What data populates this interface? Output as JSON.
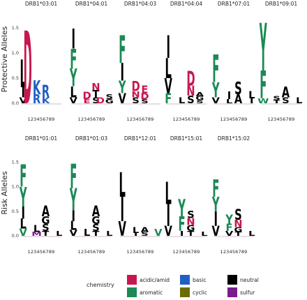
{
  "chart_data": {
    "type": "sequence-logo",
    "positions": [
      "1",
      "2",
      "3",
      "4",
      "5",
      "6",
      "7",
      "8",
      "9"
    ],
    "position_axis_label": "123456789",
    "yticks": [
      "0.0",
      "0.5",
      "1.0",
      "1.5"
    ],
    "ylim": [
      0,
      1.75
    ],
    "rows": [
      {
        "label": "Protective Alleles",
        "panels": [
          {
            "title": "DRB1*03:01",
            "letters": [
              {
                "pos": 1,
                "char": "L",
                "value": 0.55,
                "chem": "neutral"
              },
              {
                "pos": 1,
                "char": "I",
                "value": 0.2,
                "chem": "neutral"
              },
              {
                "pos": 1,
                "char": "V",
                "value": 0.12,
                "chem": "neutral"
              },
              {
                "pos": 2,
                "char": "D",
                "value": 1.45,
                "chem": "acidic/amid"
              },
              {
                "pos": 4,
                "char": "K",
                "value": 0.28,
                "chem": "basic"
              },
              {
                "pos": 4,
                "char": "R",
                "value": 0.18,
                "chem": "basic"
              },
              {
                "pos": 6,
                "char": "R",
                "value": 0.25,
                "chem": "basic"
              },
              {
                "pos": 6,
                "char": "K",
                "value": 0.12,
                "chem": "basic"
              }
            ]
          },
          {
            "title": "DRB1*04:01",
            "letters": [
              {
                "pos": 1,
                "char": "F",
                "value": 0.4,
                "chem": "aromatic"
              },
              {
                "pos": 1,
                "char": "Y",
                "value": 0.35,
                "chem": "aromatic"
              },
              {
                "pos": 1,
                "char": "I",
                "value": 0.4,
                "chem": "neutral"
              },
              {
                "pos": 1,
                "char": "L",
                "value": 0.22,
                "chem": "neutral"
              },
              {
                "pos": 1,
                "char": "V",
                "value": 0.12,
                "chem": "neutral"
              },
              {
                "pos": 4,
                "char": "D",
                "value": 0.14,
                "chem": "acidic/amid"
              },
              {
                "pos": 4,
                "char": "E",
                "value": 0.08,
                "chem": "acidic/amid"
              },
              {
                "pos": 6,
                "char": "S",
                "value": 0.12,
                "chem": "neutral"
              },
              {
                "pos": 6,
                "char": "T",
                "value": 0.14,
                "chem": "neutral"
              },
              {
                "pos": 6,
                "char": "N",
                "value": 0.14,
                "chem": "acidic/amid"
              },
              {
                "pos": 7,
                "char": "D",
                "value": 0.12,
                "chem": "acidic/amid"
              },
              {
                "pos": 9,
                "char": "S",
                "value": 0.1,
                "chem": "neutral"
              },
              {
                "pos": 9,
                "char": "G",
                "value": 0.08,
                "chem": "neutral"
              }
            ]
          },
          {
            "title": "DRB1*04:03",
            "letters": [
              {
                "pos": 1,
                "char": "F",
                "value": 0.55,
                "chem": "aromatic"
              },
              {
                "pos": 1,
                "char": "I",
                "value": 0.35,
                "chem": "neutral"
              },
              {
                "pos": 1,
                "char": "Y",
                "value": 0.25,
                "chem": "aromatic"
              },
              {
                "pos": 1,
                "char": "V",
                "value": 0.2,
                "chem": "neutral"
              },
              {
                "pos": 4,
                "char": "D",
                "value": 0.2,
                "chem": "acidic/amid"
              },
              {
                "pos": 4,
                "char": "S",
                "value": 0.12,
                "chem": "neutral"
              },
              {
                "pos": 4,
                "char": "N",
                "value": 0.12,
                "chem": "acidic/amid"
              },
              {
                "pos": 6,
                "char": "E",
                "value": 0.15,
                "chem": "acidic/amid"
              },
              {
                "pos": 6,
                "char": "D",
                "value": 0.12,
                "chem": "acidic/amid"
              },
              {
                "pos": 6,
                "char": "S",
                "value": 0.08,
                "chem": "neutral"
              }
            ]
          },
          {
            "title": "DRB1*04:04",
            "letters": [
              {
                "pos": 1,
                "char": "I",
                "value": 0.45,
                "chem": "neutral"
              },
              {
                "pos": 1,
                "char": "L",
                "value": 0.4,
                "chem": "neutral"
              },
              {
                "pos": 1,
                "char": "V",
                "value": 0.3,
                "chem": "neutral"
              },
              {
                "pos": 1,
                "char": "F",
                "value": 0.2,
                "chem": "aromatic"
              },
              {
                "pos": 4,
                "char": "L",
                "value": 0.12,
                "chem": "neutral"
              },
              {
                "pos": 6,
                "char": "D",
                "value": 0.3,
                "chem": "acidic/amid"
              },
              {
                "pos": 6,
                "char": "S",
                "value": 0.15,
                "chem": "neutral"
              },
              {
                "pos": 6,
                "char": "N",
                "value": 0.2,
                "chem": "acidic/amid"
              },
              {
                "pos": 8,
                "char": "G",
                "value": 0.08,
                "chem": "neutral"
              },
              {
                "pos": 8,
                "char": "A",
                "value": 0.08,
                "chem": "neutral"
              },
              {
                "pos": 8,
                "char": "S",
                "value": 0.06,
                "chem": "neutral"
              }
            ]
          },
          {
            "title": "DRB1*07:01",
            "letters": [
              {
                "pos": 1,
                "char": "F",
                "value": 0.55,
                "chem": "aromatic"
              },
              {
                "pos": 1,
                "char": "Y",
                "value": 0.3,
                "chem": "aromatic"
              },
              {
                "pos": 1,
                "char": "V",
                "value": 0.12,
                "chem": "neutral"
              },
              {
                "pos": 4,
                "char": "I",
                "value": 0.15,
                "chem": "neutral"
              },
              {
                "pos": 4,
                "char": "L",
                "value": 0.08,
                "chem": "neutral"
              },
              {
                "pos": 6,
                "char": "S",
                "value": 0.25,
                "chem": "neutral"
              },
              {
                "pos": 6,
                "char": "A",
                "value": 0.18,
                "chem": "neutral"
              },
              {
                "pos": 9,
                "char": "L",
                "value": 0.14,
                "chem": "neutral"
              },
              {
                "pos": 9,
                "char": "I",
                "value": 0.1,
                "chem": "neutral"
              }
            ]
          },
          {
            "title": "DRB1*09:01",
            "letters": [
              {
                "pos": 1,
                "char": "Y",
                "value": 0.95,
                "chem": "aromatic"
              },
              {
                "pos": 1,
                "char": "F",
                "value": 0.55,
                "chem": "aromatic"
              },
              {
                "pos": 1,
                "char": "W",
                "value": 0.1,
                "chem": "aromatic"
              },
              {
                "pos": 4,
                "char": "S",
                "value": 0.08,
                "chem": "neutral"
              },
              {
                "pos": 4,
                "char": "T",
                "value": 0.06,
                "chem": "neutral"
              },
              {
                "pos": 6,
                "char": "A",
                "value": 0.22,
                "chem": "neutral"
              },
              {
                "pos": 6,
                "char": "S",
                "value": 0.12,
                "chem": "neutral"
              },
              {
                "pos": 9,
                "char": "L",
                "value": 0.12,
                "chem": "neutral"
              }
            ]
          }
        ]
      },
      {
        "label": "Risk Alleles",
        "panels": [
          {
            "title": "DRB1*01:01",
            "letters": [
              {
                "pos": 1,
                "char": "F",
                "value": 0.45,
                "chem": "aromatic"
              },
              {
                "pos": 1,
                "char": "Y",
                "value": 0.4,
                "chem": "aromatic"
              },
              {
                "pos": 1,
                "char": "I",
                "value": 0.25,
                "chem": "neutral"
              },
              {
                "pos": 1,
                "char": "L",
                "value": 0.2,
                "chem": "neutral"
              },
              {
                "pos": 1,
                "char": "V",
                "value": 0.15,
                "chem": "aromatic"
              },
              {
                "pos": 4,
                "char": "L",
                "value": 0.14,
                "chem": "neutral"
              },
              {
                "pos": 4,
                "char": "M",
                "value": 0.08,
                "chem": "sulfur"
              },
              {
                "pos": 6,
                "char": "A",
                "value": 0.22,
                "chem": "neutral"
              },
              {
                "pos": 6,
                "char": "G",
                "value": 0.16,
                "chem": "neutral"
              },
              {
                "pos": 6,
                "char": "S",
                "value": 0.14,
                "chem": "neutral"
              },
              {
                "pos": 6,
                "char": "T",
                "value": 0.1,
                "chem": "neutral"
              },
              {
                "pos": 9,
                "char": "L",
                "value": 0.1,
                "chem": "neutral"
              }
            ]
          },
          {
            "title": "DRB1*01:03",
            "letters": [
              {
                "pos": 1,
                "char": "F",
                "value": 0.5,
                "chem": "aromatic"
              },
              {
                "pos": 1,
                "char": "Y",
                "value": 0.45,
                "chem": "aromatic"
              },
              {
                "pos": 1,
                "char": "I",
                "value": 0.22,
                "chem": "neutral"
              },
              {
                "pos": 1,
                "char": "L",
                "value": 0.18,
                "chem": "neutral"
              },
              {
                "pos": 1,
                "char": "V",
                "value": 0.12,
                "chem": "neutral"
              },
              {
                "pos": 4,
                "char": "L",
                "value": 0.14,
                "chem": "neutral"
              },
              {
                "pos": 6,
                "char": "A",
                "value": 0.22,
                "chem": "neutral"
              },
              {
                "pos": 6,
                "char": "G",
                "value": 0.16,
                "chem": "neutral"
              },
              {
                "pos": 6,
                "char": "S",
                "value": 0.14,
                "chem": "neutral"
              },
              {
                "pos": 6,
                "char": "T",
                "value": 0.1,
                "chem": "neutral"
              },
              {
                "pos": 9,
                "char": "L",
                "value": 0.1,
                "chem": "neutral"
              }
            ]
          },
          {
            "title": "DRB1*12:01",
            "letters": [
              {
                "pos": 1,
                "char": "I",
                "value": 0.5,
                "chem": "neutral"
              },
              {
                "pos": 1,
                "char": "L",
                "value": 0.5,
                "chem": "neutral"
              },
              {
                "pos": 1,
                "char": "V",
                "value": 0.3,
                "chem": "neutral"
              },
              {
                "pos": 4,
                "char": "L",
                "value": 0.12,
                "chem": "neutral"
              },
              {
                "pos": 4,
                "char": "I",
                "value": 0.06,
                "chem": "neutral"
              },
              {
                "pos": 6,
                "char": "A",
                "value": 0.1,
                "chem": "neutral"
              },
              {
                "pos": 6,
                "char": "S",
                "value": 0.08,
                "chem": "neutral"
              },
              {
                "pos": 9,
                "char": "V",
                "value": 0.14,
                "chem": "aromatic"
              }
            ]
          },
          {
            "title": "DRB1*15:01",
            "letters": [
              {
                "pos": 1,
                "char": "I",
                "value": 0.45,
                "chem": "neutral"
              },
              {
                "pos": 1,
                "char": "L",
                "value": 0.45,
                "chem": "neutral"
              },
              {
                "pos": 1,
                "char": "V",
                "value": 0.2,
                "chem": "neutral"
              },
              {
                "pos": 4,
                "char": "Y",
                "value": 0.35,
                "chem": "aromatic"
              },
              {
                "pos": 4,
                "char": "F",
                "value": 0.3,
                "chem": "aromatic"
              },
              {
                "pos": 4,
                "char": "I",
                "value": 0.1,
                "chem": "neutral"
              },
              {
                "pos": 6,
                "char": "S",
                "value": 0.15,
                "chem": "neutral"
              },
              {
                "pos": 6,
                "char": "N",
                "value": 0.14,
                "chem": "acidic/amid"
              },
              {
                "pos": 6,
                "char": "G",
                "value": 0.12,
                "chem": "neutral"
              },
              {
                "pos": 6,
                "char": "T",
                "value": 0.1,
                "chem": "neutral"
              },
              {
                "pos": 9,
                "char": "L",
                "value": 0.08,
                "chem": "neutral"
              }
            ]
          },
          {
            "title": "DRB1*15:02",
            "letters": [
              {
                "pos": 1,
                "char": "F",
                "value": 0.35,
                "chem": "aromatic"
              },
              {
                "pos": 1,
                "char": "I",
                "value": 0.3,
                "chem": "neutral"
              },
              {
                "pos": 1,
                "char": "Y",
                "value": 0.3,
                "chem": "aromatic"
              },
              {
                "pos": 1,
                "char": "V",
                "value": 0.2,
                "chem": "neutral"
              },
              {
                "pos": 4,
                "char": "Y",
                "value": 0.18,
                "chem": "aromatic"
              },
              {
                "pos": 4,
                "char": "F",
                "value": 0.15,
                "chem": "aromatic"
              },
              {
                "pos": 4,
                "char": "V",
                "value": 0.1,
                "chem": "neutral"
              },
              {
                "pos": 6,
                "char": "S",
                "value": 0.22,
                "chem": "neutral"
              },
              {
                "pos": 6,
                "char": "N",
                "value": 0.15,
                "chem": "acidic/amid"
              },
              {
                "pos": 6,
                "char": "G",
                "value": 0.1,
                "chem": "neutral"
              },
              {
                "pos": 6,
                "char": "T",
                "value": 0.08,
                "chem": "neutral"
              },
              {
                "pos": 9,
                "char": "L",
                "value": 0.1,
                "chem": "neutral"
              }
            ]
          }
        ]
      }
    ],
    "legend": {
      "title": "chemistry",
      "items": [
        {
          "label": "acidic/amid",
          "color": "#c8174f"
        },
        {
          "label": "basic",
          "color": "#1f5fc4"
        },
        {
          "label": "neutral",
          "color": "#000000"
        },
        {
          "label": "aromatic",
          "color": "#1b8a55"
        },
        {
          "label": "cyclic",
          "color": "#6b6b00"
        },
        {
          "label": "sulfur",
          "color": "#7a1e8c"
        }
      ]
    },
    "grid": false,
    "legend_placement": "bottom"
  }
}
